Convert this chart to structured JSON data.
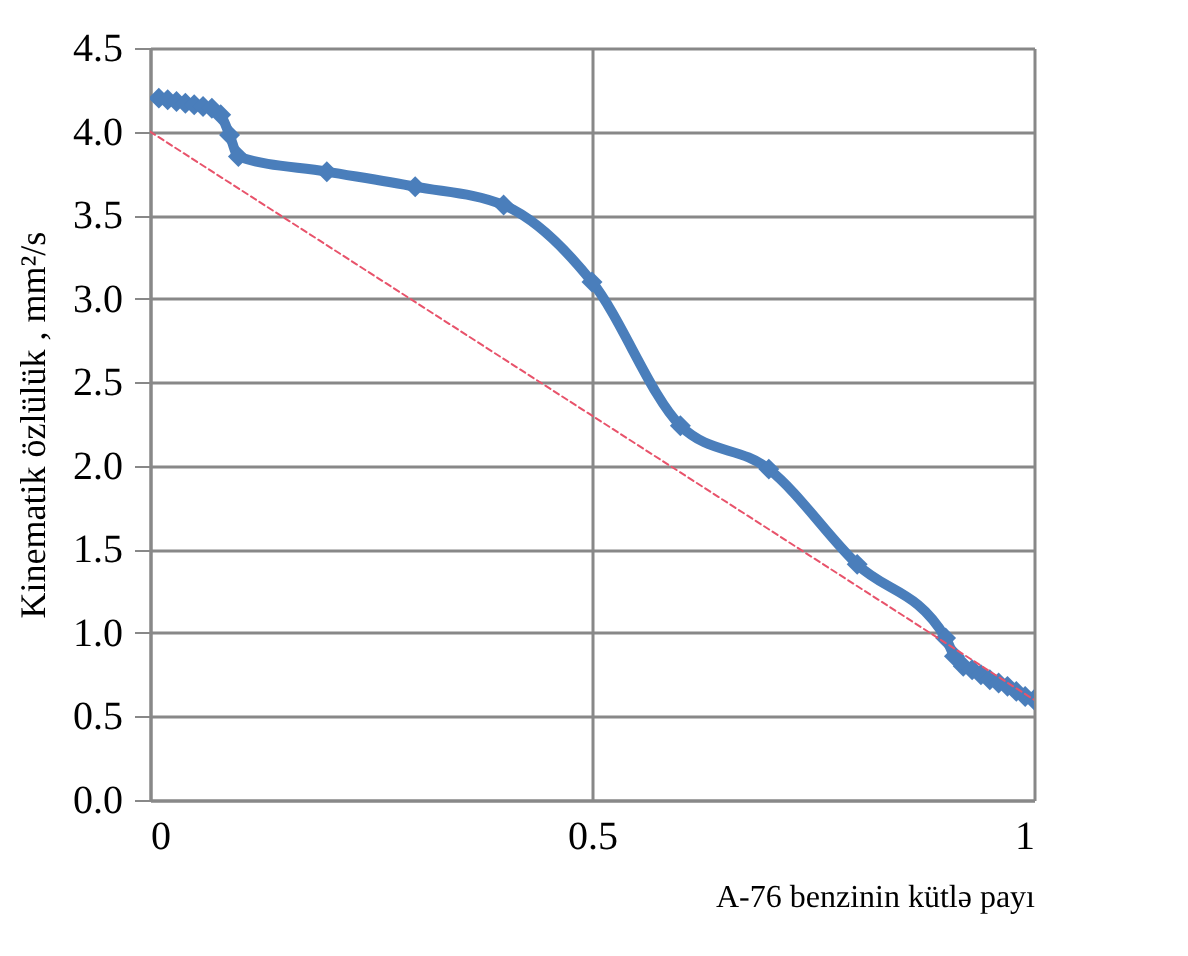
{
  "chart_data": {
    "type": "line",
    "xlabel": "A-76 benzinin kütlə payı",
    "ylabel": "Kinematik özlülük , mm²/s",
    "xlim": [
      0,
      1
    ],
    "xticks": [
      0,
      0.5,
      1
    ],
    "ylim": [
      0,
      4.5
    ],
    "yticks": [
      {
        "value": 0,
        "label": "0.0"
      },
      {
        "value": 0.5,
        "label": "0.5"
      },
      {
        "value": 1,
        "label": "1.0"
      },
      {
        "value": 1.5,
        "label": "1.5"
      },
      {
        "value": 2,
        "label": "2.0"
      },
      {
        "value": 2.5,
        "label": "2.5"
      },
      {
        "value": 3,
        "label": "3.0"
      },
      {
        "value": 3.5,
        "label": "3.5"
      },
      {
        "value": 4,
        "label": "4.0"
      },
      {
        "value": 4.5,
        "label": "4.5"
      }
    ],
    "grid": true,
    "series": [
      {
        "color": "#4a7ebb",
        "marker": "diamond",
        "x": [
          0.01,
          0.02,
          0.03,
          0.04,
          0.05,
          0.06,
          0.07,
          0.08,
          0.09,
          0.1,
          0.2,
          0.3,
          0.4,
          0.5,
          0.6,
          0.7,
          0.8,
          0.9,
          0.91,
          0.92,
          0.93,
          0.94,
          0.95,
          0.96,
          0.97,
          0.98,
          0.99,
          1
        ],
        "values": [
          4.2,
          4.19,
          4.18,
          4.17,
          4.16,
          4.15,
          4.14,
          4.1,
          3.98,
          3.85,
          3.76,
          3.67,
          3.56,
          3.1,
          2.24,
          1.98,
          1.41,
          0.97,
          0.86,
          0.8,
          0.78,
          0.75,
          0.72,
          0.7,
          0.68,
          0.65,
          0.62,
          0.6
        ]
      },
      {
        "color": "#e8536b",
        "marker": "none",
        "line_style": "dashed",
        "x": [
          0,
          1
        ],
        "values": [
          4.0,
          0.6
        ]
      }
    ]
  }
}
